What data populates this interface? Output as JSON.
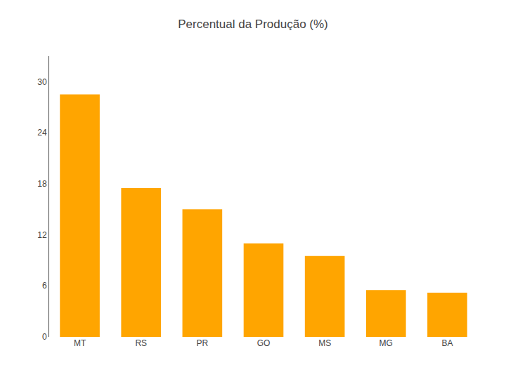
{
  "chart_data": {
    "type": "bar",
    "title": "Percentual da Produção (%)",
    "categories": [
      "MT",
      "RS",
      "PR",
      "GO",
      "MS",
      "MG",
      "BA"
    ],
    "values": [
      28.5,
      17.5,
      15.0,
      11.0,
      9.5,
      5.5,
      5.2
    ],
    "color": "#FFA500",
    "ylim": [
      0,
      33
    ],
    "yticks": [
      0,
      6,
      12,
      18,
      24,
      30
    ],
    "grid": false
  }
}
